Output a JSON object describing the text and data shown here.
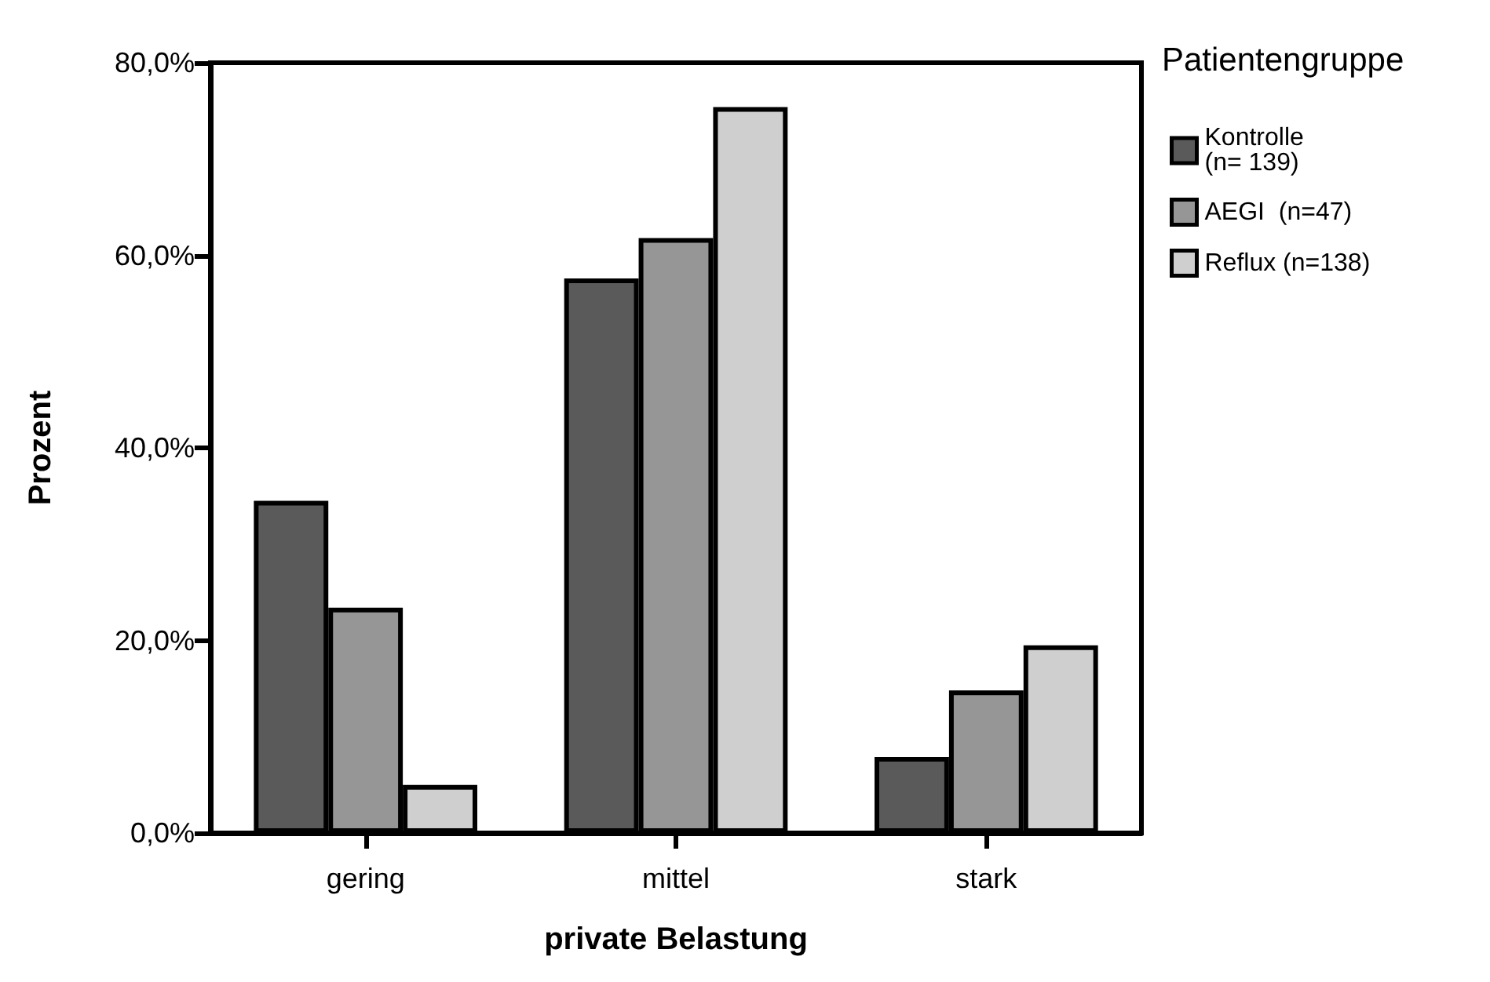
{
  "chart_data": {
    "type": "bar",
    "xlabel": "private Belastung",
    "ylabel": "Prozent",
    "legend_title": "Patientengruppe",
    "categories": [
      "gering",
      "mittel",
      "stark"
    ],
    "series": [
      {
        "name": "Kontrolle\n(n= 139)",
        "color": "#5a5a5a",
        "values": [
          34.5,
          57.6,
          7.9
        ]
      },
      {
        "name": "AEGI  (n=47)",
        "color": "#969696",
        "values": [
          23.4,
          61.8,
          14.8
        ]
      },
      {
        "name": "Reflux (n=138)",
        "color": "#cfcfcf",
        "values": [
          5.0,
          75.4,
          19.5
        ]
      }
    ],
    "ylim": [
      0,
      80
    ],
    "yticks": [
      {
        "value": 0,
        "label": "0,0%"
      },
      {
        "value": 20,
        "label": "20,0%"
      },
      {
        "value": 40,
        "label": "40,0%"
      },
      {
        "value": 60,
        "label": "60,0%"
      },
      {
        "value": 80,
        "label": "80,0%"
      }
    ],
    "grid": false,
    "legend": "top right"
  }
}
